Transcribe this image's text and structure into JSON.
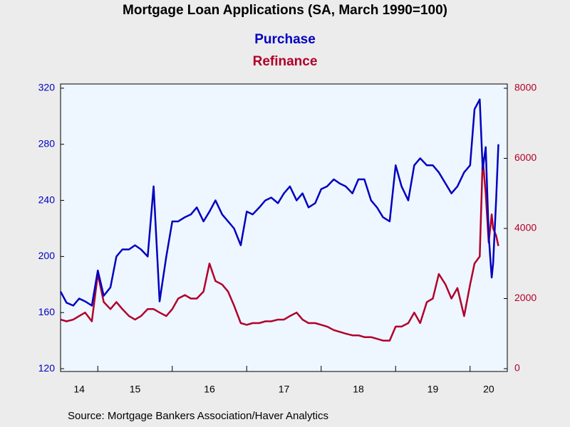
{
  "chart_data": {
    "type": "line",
    "title": "Mortgage Loan Applications (SA, March 1990=100)",
    "source": "Source:  Mortgage Bankers Association/Haver Analytics",
    "x": [
      2014.5,
      2014.58,
      2014.67,
      2014.75,
      2014.83,
      2014.92,
      2015,
      2015.08,
      2015.17,
      2015.25,
      2015.33,
      2015.42,
      2015.5,
      2015.58,
      2015.67,
      2015.75,
      2015.83,
      2015.92,
      2016,
      2016.08,
      2016.17,
      2016.25,
      2016.33,
      2016.42,
      2016.5,
      2016.58,
      2016.67,
      2016.75,
      2016.83,
      2016.92,
      2017,
      2017.08,
      2017.17,
      2017.25,
      2017.33,
      2017.42,
      2017.5,
      2017.58,
      2017.67,
      2017.75,
      2017.83,
      2017.92,
      2018,
      2018.08,
      2018.17,
      2018.25,
      2018.33,
      2018.42,
      2018.5,
      2018.58,
      2018.67,
      2018.75,
      2018.83,
      2018.92,
      2019,
      2019.08,
      2019.17,
      2019.25,
      2019.33,
      2019.42,
      2019.5,
      2019.58,
      2019.67,
      2019.75,
      2019.83,
      2019.92,
      2020,
      2020.06,
      2020.13,
      2020.17,
      2020.21,
      2020.25,
      2020.29,
      2020.31,
      2020.35,
      2020.38
    ],
    "series": [
      {
        "name": "Purchase",
        "color": "#0000c0",
        "axis": "y",
        "values": [
          175,
          167,
          165,
          170,
          168,
          165,
          190,
          172,
          178,
          200,
          205,
          205,
          208,
          205,
          200,
          250,
          168,
          200,
          225,
          225,
          228,
          230,
          235,
          225,
          232,
          240,
          230,
          225,
          220,
          208,
          232,
          230,
          235,
          240,
          242,
          238,
          245,
          250,
          240,
          245,
          235,
          238,
          248,
          250,
          255,
          252,
          250,
          245,
          255,
          255,
          240,
          235,
          228,
          225,
          265,
          250,
          240,
          265,
          270,
          265,
          265,
          260,
          252,
          245,
          250,
          260,
          265,
          305,
          312,
          262,
          278,
          215,
          185,
          195,
          240,
          280
        ]
      },
      {
        "name": "Refinance",
        "color": "#b0002a",
        "axis": "y2",
        "values": [
          1400,
          1350,
          1400,
          1500,
          1600,
          1350,
          2700,
          1900,
          1700,
          1900,
          1700,
          1500,
          1400,
          1500,
          1700,
          1700,
          1600,
          1500,
          1700,
          2000,
          2100,
          2000,
          2000,
          2200,
          3000,
          2500,
          2400,
          2200,
          1800,
          1300,
          1250,
          1300,
          1300,
          1350,
          1350,
          1400,
          1400,
          1500,
          1600,
          1400,
          1300,
          1300,
          1250,
          1200,
          1100,
          1050,
          1000,
          950,
          950,
          900,
          900,
          850,
          800,
          800,
          1200,
          1200,
          1300,
          1600,
          1300,
          1900,
          2000,
          2700,
          2400,
          2000,
          2300,
          1500,
          2400,
          3000,
          3200,
          6000,
          5000,
          3600,
          4400,
          4000,
          3800,
          3500
        ]
      }
    ],
    "xlim": [
      2014.5,
      2020.5
    ],
    "xticks": [
      {
        "value": 2014,
        "label": "14"
      },
      {
        "value": 2015,
        "label": "15"
      },
      {
        "value": 2016,
        "label": "16"
      },
      {
        "value": 2017,
        "label": "17"
      },
      {
        "value": 2018,
        "label": "18"
      },
      {
        "value": 2019,
        "label": "19"
      },
      {
        "value": 2020,
        "label": "20"
      }
    ],
    "ylim": [
      118,
      323
    ],
    "yticks": [
      120,
      160,
      200,
      240,
      280,
      320
    ],
    "y2lim": [
      -81,
      8122
    ],
    "y2ticks": [
      0,
      2000,
      4000,
      6000,
      8000
    ],
    "plot_background": "#eef6ff"
  }
}
